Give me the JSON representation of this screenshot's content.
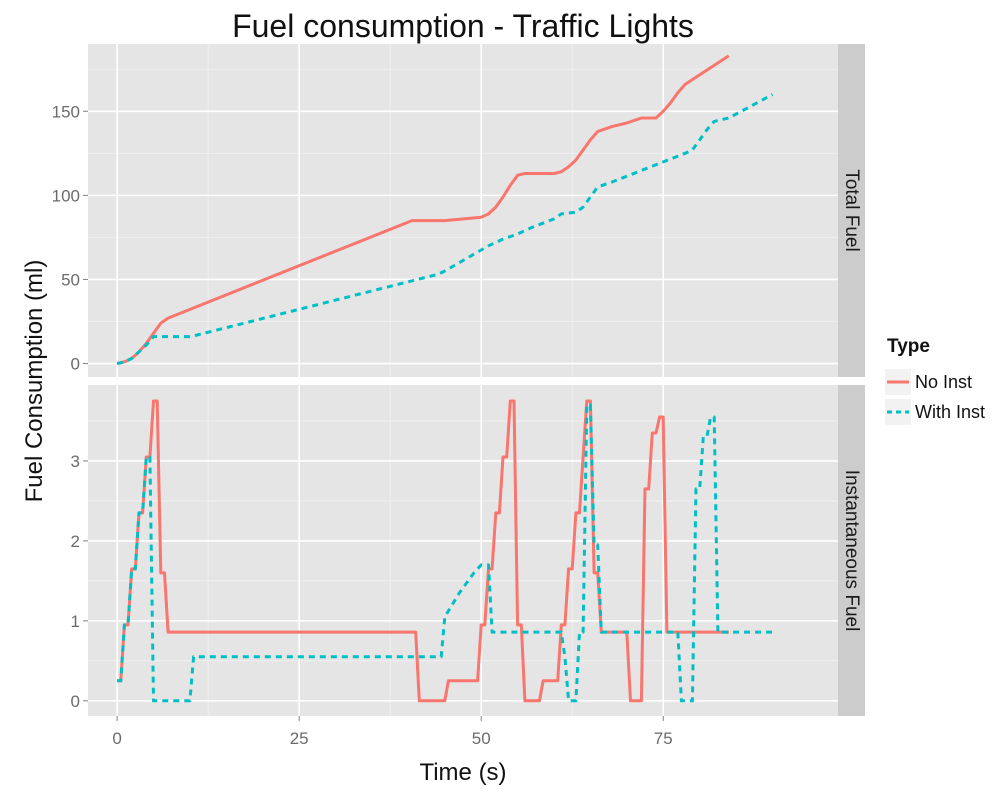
{
  "chart_data": {
    "type": "line",
    "title": "Fuel consumption - Traffic Lights",
    "xlabel": "Time (s)",
    "ylabel": "Fuel Consumption (ml)",
    "xlim": [
      -4,
      99
    ],
    "xticks": [
      0,
      25,
      50,
      75
    ],
    "grid": true,
    "legend": {
      "title": "Type",
      "position": "right",
      "entries": [
        {
          "label": "No Inst",
          "color": "#F8766D",
          "dash": "solid"
        },
        {
          "label": "With Inst",
          "color": "#00BFC4",
          "dash": "dashed"
        }
      ]
    },
    "panels": [
      {
        "strip": "Total Fuel",
        "ylim": [
          -8,
          190
        ],
        "yticks": [
          0,
          50,
          100,
          150
        ],
        "series": [
          {
            "name": "No Inst",
            "color": "#F8766D",
            "dash": "solid",
            "points": [
              [
                0,
                0
              ],
              [
                1,
                1
              ],
              [
                2,
                3
              ],
              [
                3,
                7
              ],
              [
                4,
                12
              ],
              [
                5,
                18
              ],
              [
                6,
                24
              ],
              [
                7,
                27
              ],
              [
                40.5,
                85
              ],
              [
                45,
                85
              ],
              [
                50,
                87
              ],
              [
                51,
                89
              ],
              [
                52,
                93
              ],
              [
                53,
                99
              ],
              [
                54,
                106
              ],
              [
                55,
                112
              ],
              [
                56,
                113
              ],
              [
                60,
                113
              ],
              [
                61,
                114
              ],
              [
                62,
                117
              ],
              [
                63,
                121
              ],
              [
                64,
                127
              ],
              [
                65,
                133
              ],
              [
                66,
                138
              ],
              [
                68,
                141
              ],
              [
                70,
                143
              ],
              [
                72,
                146
              ],
              [
                74,
                146
              ],
              [
                75,
                150
              ],
              [
                76,
                155
              ],
              [
                77,
                161
              ],
              [
                78,
                166
              ],
              [
                84,
                183
              ]
            ]
          },
          {
            "name": "With Inst",
            "color": "#00BFC4",
            "dash": "dashed",
            "points": [
              [
                0,
                0
              ],
              [
                1,
                1
              ],
              [
                2,
                3
              ],
              [
                3,
                7
              ],
              [
                4,
                11
              ],
              [
                5,
                16
              ],
              [
                10,
                16
              ],
              [
                11,
                17
              ],
              [
                44,
                53
              ],
              [
                45,
                55
              ],
              [
                47,
                60
              ],
              [
                49,
                65
              ],
              [
                51,
                70
              ],
              [
                53,
                74
              ],
              [
                55,
                77
              ],
              [
                57,
                81
              ],
              [
                60,
                86
              ],
              [
                61,
                89
              ],
              [
                63,
                90
              ],
              [
                64,
                93
              ],
              [
                65,
                99
              ],
              [
                66,
                105
              ],
              [
                68,
                108
              ],
              [
                78,
                125
              ],
              [
                79,
                127
              ],
              [
                80,
                133
              ],
              [
                81,
                139
              ],
              [
                82,
                144
              ],
              [
                84,
                146
              ],
              [
                90,
                160
              ]
            ]
          }
        ]
      },
      {
        "strip": "Instantaneous Fuel",
        "ylim": [
          -0.19,
          3.95
        ],
        "yticks": [
          0,
          1,
          2,
          3
        ],
        "series": [
          {
            "name": "No Inst",
            "color": "#F8766D",
            "dash": "solid",
            "points": [
              [
                0,
                0.25
              ],
              [
                0.5,
                0.25
              ],
              [
                1,
                0.95
              ],
              [
                1.5,
                0.95
              ],
              [
                2,
                1.65
              ],
              [
                2.5,
                1.65
              ],
              [
                3,
                2.35
              ],
              [
                3.5,
                2.35
              ],
              [
                4,
                3.05
              ],
              [
                4.5,
                3.05
              ],
              [
                5,
                3.75
              ],
              [
                5.5,
                3.75
              ],
              [
                6,
                1.6
              ],
              [
                6.5,
                1.6
              ],
              [
                7,
                0.86
              ],
              [
                41,
                0.86
              ],
              [
                41.5,
                0
              ],
              [
                45,
                0
              ],
              [
                45.5,
                0.25
              ],
              [
                49.5,
                0.25
              ],
              [
                50,
                0.95
              ],
              [
                50.5,
                0.95
              ],
              [
                51,
                1.65
              ],
              [
                51.5,
                1.65
              ],
              [
                52,
                2.35
              ],
              [
                52.5,
                2.35
              ],
              [
                53,
                3.05
              ],
              [
                53.5,
                3.05
              ],
              [
                54,
                3.75
              ],
              [
                54.5,
                3.75
              ],
              [
                55,
                0.95
              ],
              [
                55.5,
                0.95
              ],
              [
                56,
                0
              ],
              [
                58,
                0
              ],
              [
                58.5,
                0.25
              ],
              [
                60.5,
                0.25
              ],
              [
                61,
                0.95
              ],
              [
                61.5,
                0.95
              ],
              [
                62,
                1.65
              ],
              [
                62.5,
                1.65
              ],
              [
                63,
                2.35
              ],
              [
                63.5,
                2.35
              ],
              [
                64,
                3.05
              ],
              [
                64.5,
                3.75
              ],
              [
                65,
                3.75
              ],
              [
                65.5,
                1.6
              ],
              [
                66,
                1.6
              ],
              [
                66.5,
                0.86
              ],
              [
                70,
                0.86
              ],
              [
                70.5,
                0
              ],
              [
                72,
                0
              ],
              [
                72.5,
                2.65
              ],
              [
                73,
                2.65
              ],
              [
                73.5,
                3.35
              ],
              [
                74,
                3.35
              ],
              [
                74.5,
                3.55
              ],
              [
                75,
                3.55
              ],
              [
                75.5,
                0.86
              ],
              [
                84,
                0.86
              ]
            ]
          },
          {
            "name": "With Inst",
            "color": "#00BFC4",
            "dash": "dashed",
            "points": [
              [
                0,
                0.25
              ],
              [
                0.5,
                0.25
              ],
              [
                1,
                0.95
              ],
              [
                1.5,
                0.95
              ],
              [
                2,
                1.65
              ],
              [
                2.5,
                1.65
              ],
              [
                3,
                2.35
              ],
              [
                3.5,
                2.35
              ],
              [
                4,
                3.05
              ],
              [
                4.5,
                3.05
              ],
              [
                5,
                0
              ],
              [
                10,
                0
              ],
              [
                10.5,
                0.55
              ],
              [
                44.5,
                0.55
              ],
              [
                45,
                1.05
              ],
              [
                47,
                1.35
              ],
              [
                49,
                1.6
              ],
              [
                50,
                1.7
              ],
              [
                51,
                1.7
              ],
              [
                51.5,
                0.86
              ],
              [
                61,
                0.86
              ],
              [
                61.5,
                0.55
              ],
              [
                62,
                0
              ],
              [
                63,
                0
              ],
              [
                63.5,
                0.86
              ],
              [
                64,
                0.86
              ],
              [
                64.5,
                3.7
              ],
              [
                65,
                3.7
              ],
              [
                65.5,
                1.95
              ],
              [
                66,
                1.95
              ],
              [
                66.5,
                0.86
              ],
              [
                77,
                0.86
              ],
              [
                77.5,
                0
              ],
              [
                79,
                0
              ],
              [
                79.5,
                2.65
              ],
              [
                80,
                2.65
              ],
              [
                80.5,
                3.3
              ],
              [
                81,
                3.3
              ],
              [
                81.5,
                3.55
              ],
              [
                82,
                3.55
              ],
              [
                82.5,
                0.86
              ],
              [
                90,
                0.86
              ]
            ]
          }
        ]
      }
    ]
  }
}
